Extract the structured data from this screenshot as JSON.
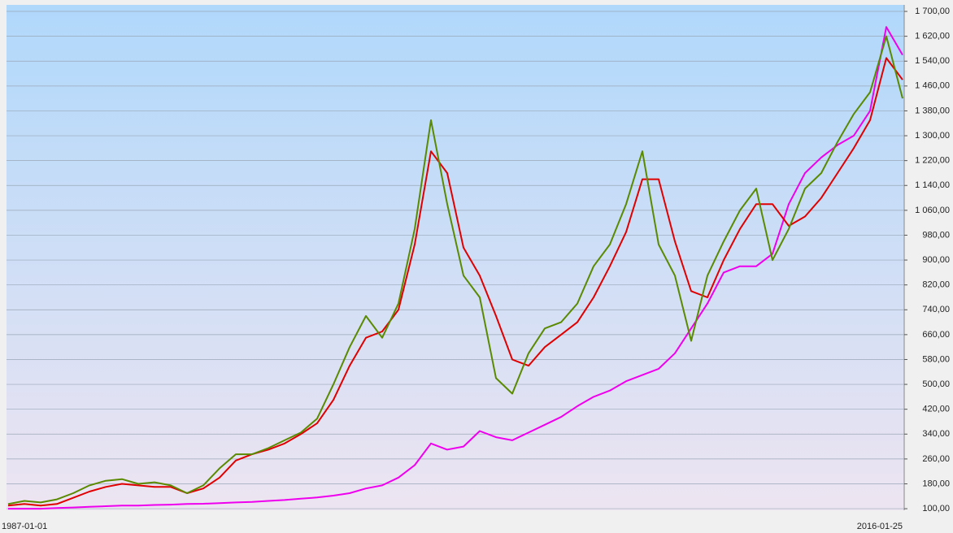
{
  "chart_data": {
    "type": "line",
    "categories": [
      "1987-01-01",
      null,
      null,
      null,
      null,
      null,
      null,
      null,
      null,
      null,
      null,
      null,
      null,
      null,
      null,
      null,
      null,
      null,
      null,
      null,
      null,
      null,
      null,
      null,
      null,
      null,
      null,
      null,
      null,
      null,
      null,
      null,
      null,
      null,
      null,
      null,
      null,
      null,
      null,
      null,
      null,
      null,
      null,
      null,
      null,
      null,
      null,
      null,
      null,
      null,
      null,
      null,
      null,
      null,
      null,
      "2016-01-25"
    ],
    "series": [
      {
        "color": "#5a8a00",
        "values": [
          115,
          125,
          120,
          130,
          150,
          175,
          190,
          195,
          180,
          185,
          175,
          150,
          175,
          230,
          275,
          275,
          295,
          320,
          345,
          390,
          500,
          620,
          720,
          650,
          760,
          1000,
          1350,
          1080,
          850,
          780,
          520,
          470,
          600,
          680,
          700,
          760,
          880,
          950,
          1080,
          1250,
          950,
          850,
          640,
          850,
          960,
          1060,
          1130,
          900,
          1000,
          1130,
          1180,
          1280,
          1370,
          1440,
          1620,
          1420
        ]
      },
      {
        "color": "#e00000",
        "values": [
          110,
          115,
          110,
          115,
          135,
          155,
          170,
          180,
          175,
          170,
          170,
          150,
          165,
          200,
          255,
          275,
          290,
          310,
          340,
          375,
          450,
          560,
          650,
          670,
          740,
          950,
          1250,
          1180,
          940,
          850,
          720,
          580,
          560,
          620,
          660,
          700,
          780,
          880,
          990,
          1160,
          1160,
          960,
          800,
          780,
          900,
          1000,
          1080,
          1080,
          1010,
          1040,
          1100,
          1180,
          1260,
          1350,
          1550,
          1480
        ]
      },
      {
        "color": "#ee00ee",
        "values": [
          100,
          100,
          100,
          102,
          104,
          106,
          108,
          110,
          110,
          112,
          113,
          115,
          116,
          118,
          120,
          122,
          125,
          128,
          132,
          136,
          142,
          150,
          165,
          175,
          200,
          240,
          310,
          290,
          300,
          350,
          330,
          320,
          345,
          370,
          395,
          430,
          460,
          480,
          510,
          530,
          550,
          600,
          680,
          760,
          860,
          880,
          880,
          920,
          1080,
          1180,
          1230,
          1270,
          1300,
          1380,
          1650,
          1560
        ]
      }
    ],
    "ylim": [
      95,
      1721
    ],
    "yticks": [
      {
        "value": 100,
        "label": "100,00"
      },
      {
        "value": 180,
        "label": "180,00"
      },
      {
        "value": 260,
        "label": "260,00"
      },
      {
        "value": 340,
        "label": "340,00"
      },
      {
        "value": 420,
        "label": "420,00"
      },
      {
        "value": 500,
        "label": "500,00"
      },
      {
        "value": 580,
        "label": "580,00"
      },
      {
        "value": 660,
        "label": "660,00"
      },
      {
        "value": 740,
        "label": "740,00"
      },
      {
        "value": 820,
        "label": "820,00"
      },
      {
        "value": 900,
        "label": "900,00"
      },
      {
        "value": 980,
        "label": "980,00"
      },
      {
        "value": 1060,
        "label": "1 060,00"
      },
      {
        "value": 1140,
        "label": "1 140,00"
      },
      {
        "value": 1220,
        "label": "1 220,00"
      },
      {
        "value": 1300,
        "label": "1 300,00"
      },
      {
        "value": 1380,
        "label": "1 380,00"
      },
      {
        "value": 1460,
        "label": "1 460,00"
      },
      {
        "value": 1540,
        "label": "1 540,00"
      },
      {
        "value": 1620,
        "label": "1 620,00"
      },
      {
        "value": 1700,
        "label": "1 700,00"
      }
    ],
    "grid": true
  }
}
